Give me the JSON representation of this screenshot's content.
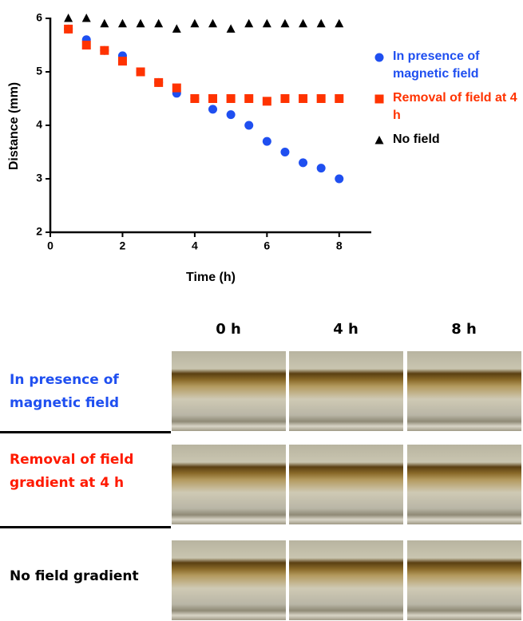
{
  "chart_data": {
    "type": "scatter",
    "x_label": "Time (h)",
    "y_label": "Distance (mm)",
    "x": [
      0.5,
      1,
      1.5,
      2,
      2.5,
      3,
      3.5,
      4,
      4.5,
      5,
      5.5,
      6,
      6.5,
      7,
      7.5,
      8
    ],
    "series": [
      {
        "name": "In presence of magnetic field",
        "color": "#1f4ff0",
        "marker": "circle",
        "values": [
          5.8,
          5.6,
          5.4,
          5.3,
          5.0,
          4.8,
          4.6,
          4.5,
          4.3,
          4.2,
          4.0,
          3.7,
          3.5,
          3.3,
          3.2,
          3.0
        ]
      },
      {
        "name": "Removal of field at 4 h",
        "color": "#ff3300",
        "marker": "square",
        "values": [
          5.8,
          5.5,
          5.4,
          5.2,
          5.0,
          4.8,
          4.7,
          4.5,
          4.5,
          4.5,
          4.5,
          4.45,
          4.5,
          4.5,
          4.5,
          4.5
        ]
      },
      {
        "name": "No field",
        "color": "#000000",
        "marker": "triangle",
        "values": [
          6.0,
          6.0,
          5.9,
          5.9,
          5.9,
          5.9,
          5.8,
          5.9,
          5.9,
          5.8,
          5.9,
          5.9,
          5.9,
          5.9,
          5.9,
          5.9
        ]
      }
    ],
    "xlim": [
      0,
      9
    ],
    "xticks": [
      0,
      2,
      4,
      6,
      8
    ],
    "ylim": [
      2,
      6
    ],
    "yticks": [
      2,
      3,
      4,
      5,
      6
    ],
    "grid": false,
    "legend": "right"
  },
  "photo_panel": {
    "columns": [
      "0 h",
      "4 h",
      "8 h"
    ],
    "rows": [
      {
        "label": "In presence of magnetic field",
        "color": "#1f4ff0"
      },
      {
        "label": "Removal of field gradient at 4 h",
        "color": "#ff1a00"
      },
      {
        "label": "No field gradient",
        "color": "#000000"
      }
    ]
  }
}
